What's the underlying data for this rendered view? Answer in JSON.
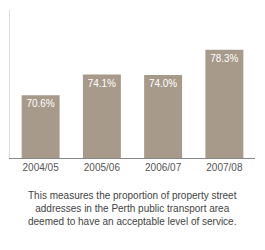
{
  "chart_data": {
    "type": "bar",
    "categories": [
      "2004/05",
      "2005/06",
      "2006/07",
      "2007/08"
    ],
    "values": [
      70.6,
      74.1,
      74.0,
      78.3
    ],
    "value_labels": [
      "70.6%",
      "74.1%",
      "74.0%",
      "78.3%"
    ],
    "data_labels": true,
    "color": "#a89a8a",
    "ylim": [
      60,
      85
    ],
    "tick_labels": "x",
    "grid": false,
    "annotations": [
      "This measures the proportion of property street\naddresses in the Perth public transport area\ndeemed to have an acceptable level of service."
    ]
  }
}
